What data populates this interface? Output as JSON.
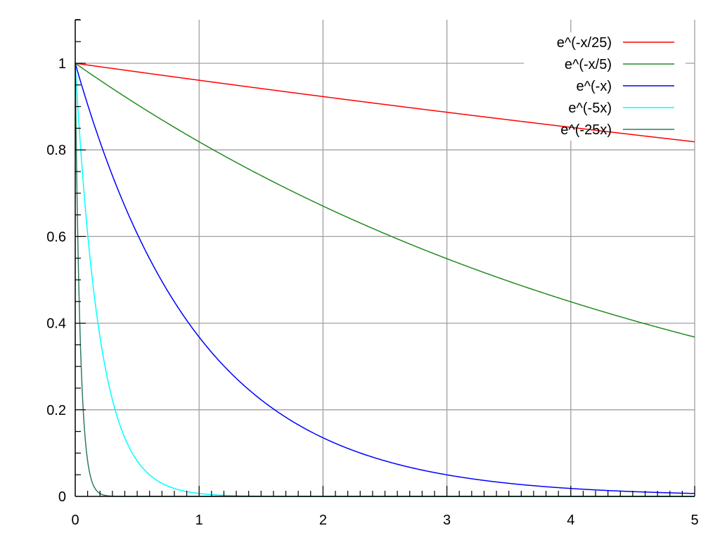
{
  "chart_data": {
    "type": "line",
    "title": "",
    "xlabel": "",
    "ylabel": "",
    "xlim": [
      0,
      5
    ],
    "ylim": [
      0,
      1.1
    ],
    "grid": true,
    "legend_position": "top-right",
    "x_ticks": [
      "0",
      "1",
      "2",
      "3",
      "4",
      "5"
    ],
    "x_tick_values": [
      0,
      1,
      2,
      3,
      4,
      5
    ],
    "y_ticks": [
      "0",
      "0.2",
      "0.4",
      "0.6",
      "0.8",
      "1"
    ],
    "y_tick_values": [
      0,
      0.2,
      0.4,
      0.6,
      0.8,
      1
    ],
    "x_minor_step": 0.1,
    "y_minor_step": 0.05,
    "series": [
      {
        "name": "e^(-x/25)",
        "rate": 0.04,
        "color": "#ff0000",
        "x": [
          0,
          1,
          2,
          3,
          4,
          5
        ],
        "values": [
          1,
          0.961,
          0.923,
          0.887,
          0.852,
          0.819
        ]
      },
      {
        "name": "e^(-x/5)",
        "rate": 0.2,
        "color": "#228b22",
        "x": [
          0,
          1,
          2,
          3,
          4,
          5
        ],
        "values": [
          1,
          0.819,
          0.67,
          0.549,
          0.449,
          0.368
        ]
      },
      {
        "name": "e^(-x)",
        "rate": 1,
        "color": "#0000ff",
        "x": [
          0,
          1,
          2,
          3,
          4,
          5
        ],
        "values": [
          1,
          0.368,
          0.135,
          0.05,
          0.018,
          0.007
        ]
      },
      {
        "name": "e^(-5x)",
        "rate": 5,
        "color": "#00ffff",
        "x": [
          0,
          0.2,
          0.4,
          0.6,
          1,
          2
        ],
        "values": [
          1,
          0.368,
          0.135,
          0.05,
          0.007,
          0.0
        ]
      },
      {
        "name": "e^(-25x)",
        "rate": 25,
        "color": "#2e7d5b",
        "x": [
          0,
          0.04,
          0.08,
          0.12,
          0.2,
          0.4
        ],
        "values": [
          1,
          0.368,
          0.135,
          0.05,
          0.007,
          0.0
        ]
      }
    ]
  }
}
